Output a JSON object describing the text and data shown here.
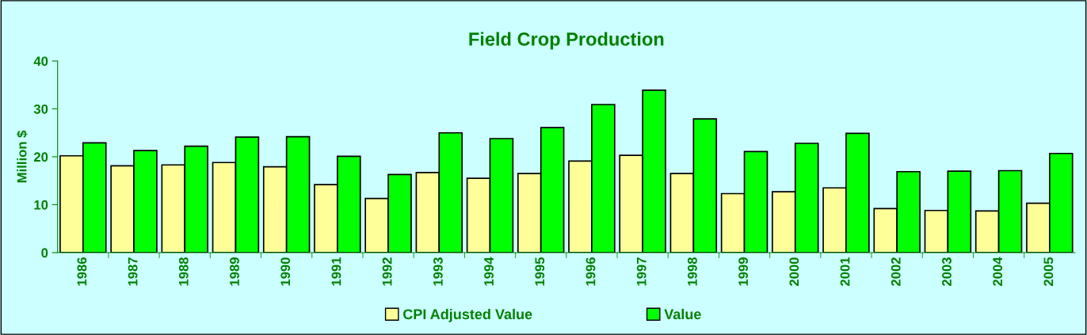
{
  "chart_data": {
    "type": "bar",
    "title": "Field Crop Production",
    "ylabel": "Million $",
    "categories": [
      "1986",
      "1987",
      "1988",
      "1989",
      "1990",
      "1991",
      "1992",
      "1993",
      "1994",
      "1995",
      "1996",
      "1997",
      "1998",
      "1999",
      "2000",
      "2001",
      "2002",
      "2003",
      "2004",
      "2005"
    ],
    "series": [
      {
        "name": "CPI Adjusted Value",
        "color": "#ffff99",
        "values": [
          20.2,
          18.1,
          18.3,
          18.8,
          17.9,
          14.2,
          11.3,
          16.7,
          15.5,
          16.5,
          19.1,
          20.3,
          16.5,
          12.3,
          12.7,
          13.5,
          9.2,
          8.8,
          8.7,
          10.3
        ]
      },
      {
        "name": "Value",
        "color": "#00ff00",
        "values": [
          22.9,
          21.3,
          22.2,
          24.1,
          24.2,
          20.1,
          16.3,
          25.0,
          23.8,
          26.1,
          30.9,
          33.9,
          27.9,
          21.1,
          22.8,
          24.9,
          16.9,
          17.0,
          17.1,
          20.7
        ]
      }
    ],
    "ylim": [
      0,
      40
    ],
    "yticks": [
      0,
      10,
      20,
      30,
      40
    ],
    "grid": false,
    "legend": "bottom"
  }
}
